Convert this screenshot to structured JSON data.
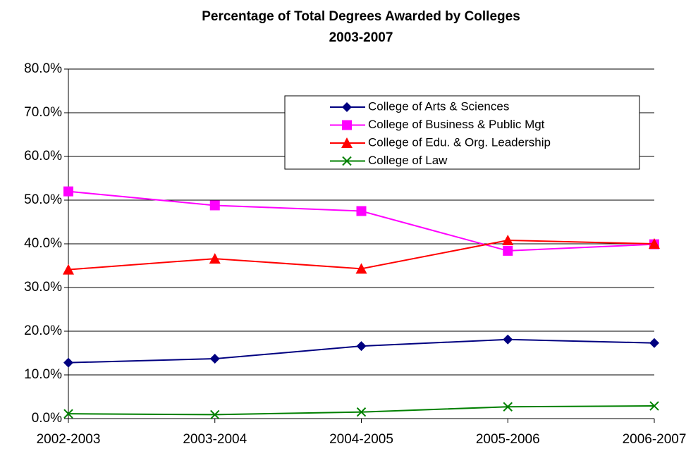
{
  "chart_data": {
    "type": "line",
    "title": "Percentage of Total Degrees Awarded by Colleges",
    "subtitle": "2003-2007",
    "categories": [
      "2002-2003",
      "2003-2004",
      "2004-2005",
      "2005-2006",
      "2006-2007"
    ],
    "series": [
      {
        "name": "College of Arts & Sciences",
        "color": "#000080",
        "marker": "diamond",
        "values": [
          12.8,
          13.7,
          16.6,
          18.1,
          17.3
        ]
      },
      {
        "name": "College of Business & Public Mgt",
        "color": "#ff00ff",
        "marker": "square",
        "values": [
          52.0,
          48.8,
          47.5,
          38.4,
          39.9
        ]
      },
      {
        "name": "College of Edu. & Org. Leadership",
        "color": "#ff0000",
        "marker": "triangle",
        "values": [
          34.1,
          36.6,
          34.3,
          40.8,
          40.0
        ]
      },
      {
        "name": "College of Law",
        "color": "#008000",
        "marker": "x",
        "values": [
          1.1,
          0.9,
          1.5,
          2.7,
          2.9
        ]
      }
    ],
    "ylim": [
      0,
      80
    ],
    "yticks": [
      {
        "value": 0,
        "label": "0.0%"
      },
      {
        "value": 10,
        "label": "10.0%"
      },
      {
        "value": 20,
        "label": "20.0%"
      },
      {
        "value": 30,
        "label": "30.0%"
      },
      {
        "value": 40,
        "label": "40.0%"
      },
      {
        "value": 50,
        "label": "50.0%"
      },
      {
        "value": 60,
        "label": "60.0%"
      },
      {
        "value": 70,
        "label": "70.0%"
      },
      {
        "value": 80,
        "label": "80.0%"
      }
    ],
    "grid": true
  }
}
